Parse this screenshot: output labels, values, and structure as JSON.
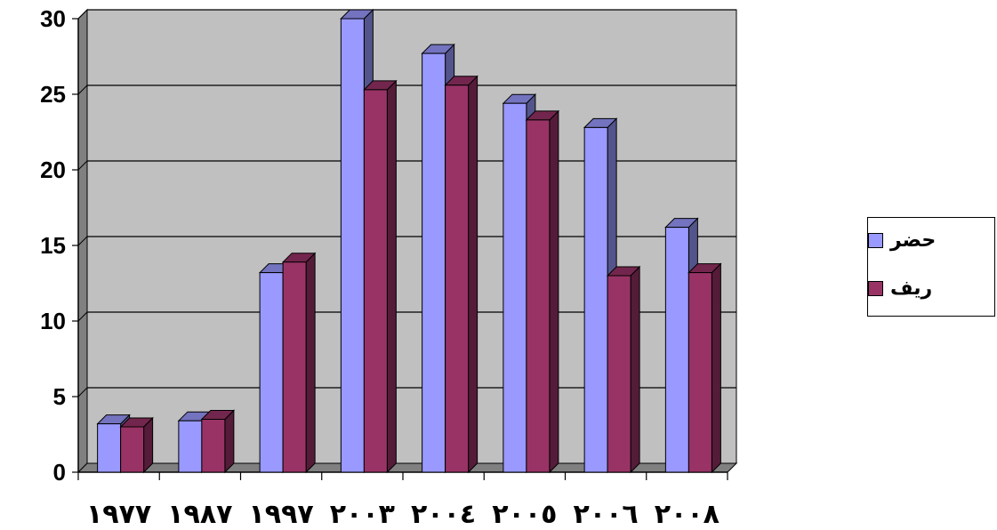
{
  "chart_data": {
    "type": "bar",
    "categories": [
      "١٩٧٧",
      "١٩٨٧",
      "١٩٩٧",
      "٢٠٠٣",
      "٢٠٠٤",
      "٢٠٠٥",
      "٢٠٠٦",
      "٢٠٠٨"
    ],
    "series": [
      {
        "name": "حضر",
        "values": [
          3.2,
          3.4,
          13.2,
          30.0,
          27.7,
          24.4,
          22.8,
          16.2
        ],
        "color": "#9999ff"
      },
      {
        "name": "ريف",
        "values": [
          3.0,
          3.5,
          13.9,
          25.3,
          25.6,
          23.3,
          13.0,
          13.2
        ],
        "color": "#993366"
      }
    ],
    "yticks": [
      0,
      5,
      10,
      15,
      20,
      25,
      30
    ],
    "ylim": [
      0,
      30
    ],
    "title": "",
    "xlabel": "",
    "ylabel": "",
    "grid": true,
    "legend_position": "right",
    "wall_color": "#c0c0c0",
    "floor_color": "#808080"
  }
}
